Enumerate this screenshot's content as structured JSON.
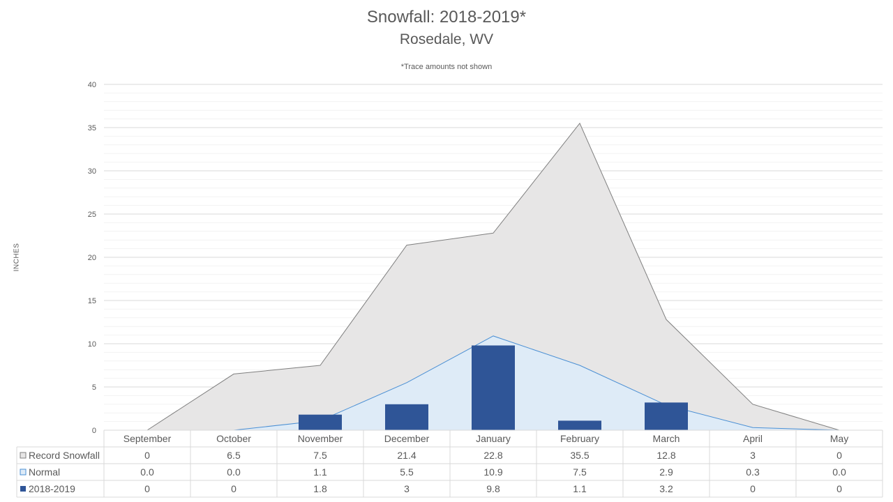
{
  "chart_data": {
    "type": "bar",
    "title": "Snowfall: 2018-2019*",
    "subtitle": "Rosedale, WV",
    "note": "*Trace amounts not shown",
    "ylabel": "INCHES",
    "xlabel": "",
    "ylim": [
      0,
      40
    ],
    "yticks": [
      0,
      5,
      10,
      15,
      20,
      25,
      30,
      35,
      40
    ],
    "grid": true,
    "legend": "data-table-left",
    "categories": [
      "September",
      "October",
      "November",
      "December",
      "January",
      "February",
      "March",
      "April",
      "May"
    ],
    "series": [
      {
        "name": "Record Snowfall",
        "kind": "area",
        "color": "#e7e6e6",
        "stroke": "#7f7f7f",
        "values": [
          0,
          6.5,
          7.5,
          21.4,
          22.8,
          35.5,
          12.8,
          3,
          0
        ],
        "labels": [
          "0",
          "6.5",
          "7.5",
          "21.4",
          "22.8",
          "35.5",
          "12.8",
          "3",
          "0"
        ]
      },
      {
        "name": "Normal",
        "kind": "area",
        "color": "#deebf7",
        "stroke": "#4a8fd4",
        "values": [
          0.0,
          0.0,
          1.1,
          5.5,
          10.9,
          7.5,
          2.9,
          0.3,
          0.0
        ],
        "labels": [
          "0.0",
          "0.0",
          "1.1",
          "5.5",
          "10.9",
          "7.5",
          "2.9",
          "0.3",
          "0.0"
        ]
      },
      {
        "name": "2018-2019",
        "kind": "bar",
        "color": "#2f5597",
        "stroke": "#2f5597",
        "values": [
          0,
          0,
          1.8,
          3,
          9.8,
          1.1,
          3.2,
          0,
          0
        ],
        "labels": [
          "0",
          "0",
          "1.8",
          "3",
          "9.8",
          "1.1",
          "3.2",
          "0",
          "0"
        ]
      }
    ]
  }
}
